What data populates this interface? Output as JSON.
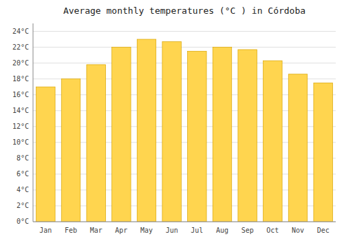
{
  "chart_data": {
    "type": "bar",
    "title": "Average monthly temperatures (°C ) in Córdoba",
    "categories": [
      "Jan",
      "Feb",
      "Mar",
      "Apr",
      "May",
      "Jun",
      "Jul",
      "Aug",
      "Sep",
      "Oct",
      "Nov",
      "Dec"
    ],
    "values": [
      17.0,
      18.0,
      19.8,
      22.0,
      23.0,
      22.7,
      21.5,
      22.0,
      21.7,
      20.3,
      18.6,
      17.5
    ],
    "color": "#FFD54F",
    "ylim": [
      0,
      25
    ],
    "yticks": [
      {
        "value": 0,
        "label": "0°C"
      },
      {
        "value": 2,
        "label": "2°C"
      },
      {
        "value": 4,
        "label": "4°C"
      },
      {
        "value": 6,
        "label": "6°C"
      },
      {
        "value": 8,
        "label": "8°C"
      },
      {
        "value": 10,
        "label": "10°C"
      },
      {
        "value": 12,
        "label": "12°C"
      },
      {
        "value": 14,
        "label": "14°C"
      },
      {
        "value": 16,
        "label": "16°C"
      },
      {
        "value": 18,
        "label": "18°C"
      },
      {
        "value": 20,
        "label": "20°C"
      },
      {
        "value": 22,
        "label": "22°C"
      },
      {
        "value": 24,
        "label": "24°C"
      }
    ],
    "grid": true
  }
}
